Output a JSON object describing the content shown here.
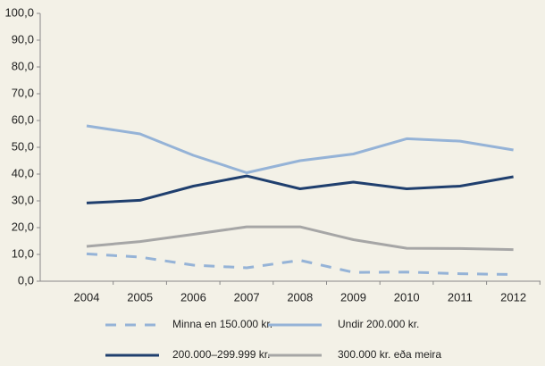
{
  "chart_data": {
    "type": "line",
    "categories": [
      "2004",
      "2005",
      "2006",
      "2007",
      "2008",
      "2009",
      "2010",
      "2011",
      "2012"
    ],
    "series": [
      {
        "name": "Minna en 150.000 kr.",
        "color": "#95b3d7",
        "dash": "dashed",
        "values": [
          10.2,
          9.0,
          6.0,
          5.0,
          7.8,
          3.3,
          3.4,
          2.8,
          2.5
        ]
      },
      {
        "name": "Undir 200.000 kr.",
        "color": "#95b3d7",
        "dash": "solid",
        "values": [
          58.0,
          55.0,
          47.0,
          40.5,
          45.0,
          47.5,
          53.2,
          52.3,
          49.0
        ]
      },
      {
        "name": "200.000–299.999 kr.",
        "color": "#1f3f6e",
        "dash": "solid",
        "values": [
          29.2,
          30.2,
          35.5,
          39.3,
          34.5,
          37.0,
          34.5,
          35.5,
          39.0
        ]
      },
      {
        "name": "300.000 kr. eða meira",
        "color": "#a6a6a6",
        "dash": "solid",
        "values": [
          13.0,
          14.8,
          17.5,
          20.3,
          20.3,
          15.5,
          12.3,
          12.2,
          11.8
        ]
      }
    ],
    "ylim": [
      0,
      100
    ],
    "yticks": [
      {
        "value": 0,
        "label": "0,0"
      },
      {
        "value": 10,
        "label": "10,0"
      },
      {
        "value": 20,
        "label": "20,0"
      },
      {
        "value": 30,
        "label": "30,0"
      },
      {
        "value": 40,
        "label": "40,0"
      },
      {
        "value": 50,
        "label": "50,0"
      },
      {
        "value": 60,
        "label": "60,0"
      },
      {
        "value": 70,
        "label": "70,0"
      },
      {
        "value": 80,
        "label": "80,0"
      },
      {
        "value": 90,
        "label": "90,0"
      },
      {
        "value": 100,
        "label": "100,0"
      }
    ],
    "grid": false,
    "legend": "bottom"
  }
}
